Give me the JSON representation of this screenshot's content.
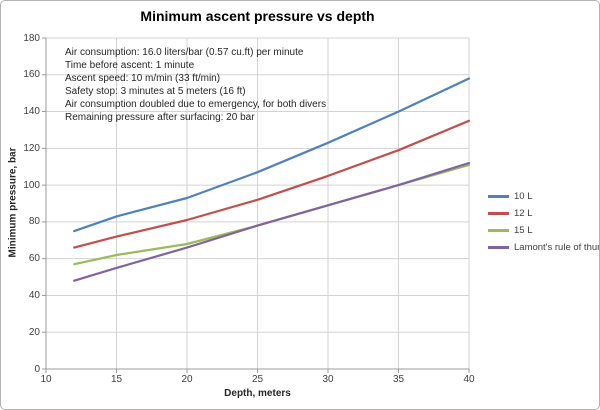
{
  "chart_data": {
    "type": "line",
    "title": "Minimum ascent pressure vs depth",
    "xlabel": "Depth, meters",
    "ylabel": "Minimum pressure, bar",
    "xlim": [
      10,
      40
    ],
    "ylim": [
      0,
      180
    ],
    "x_ticks": [
      10,
      15,
      20,
      25,
      30,
      35,
      40
    ],
    "y_ticks": [
      0,
      20,
      40,
      60,
      80,
      100,
      120,
      140,
      160,
      180
    ],
    "grid": true,
    "legend_position": "right",
    "x": [
      12,
      15,
      20,
      25,
      30,
      35,
      40
    ],
    "series": [
      {
        "name": "10 L",
        "color": "#4F81BD",
        "values": [
          75,
          83,
          93,
          107,
          123,
          140,
          158
        ]
      },
      {
        "name": "12 L",
        "color": "#C0504D",
        "values": [
          66,
          72,
          81,
          92,
          105,
          119,
          135
        ]
      },
      {
        "name": "15 L",
        "color": "#9BBB59",
        "values": [
          57,
          62,
          68,
          78,
          89,
          100,
          111
        ]
      },
      {
        "name": "Lamont's rule of thumb",
        "color": "#8064A2",
        "values": [
          48,
          55,
          66,
          78,
          89,
          100,
          112
        ]
      }
    ],
    "annotations": [
      "Air consumption: 16.0 liters/bar (0.57 cu.ft) per minute",
      "Time before ascent: 1 minute",
      "Ascent speed: 10 m/min (33 ft/min)",
      "Safety stop: 3 minutes at 5 meters (16 ft)",
      "Air consumption doubled due to emergency, for both divers",
      "Remaining pressure after surfacing: 20 bar"
    ],
    "colors": {
      "gridline": "#D3D3D3",
      "axis": "#9B9B9B",
      "tick_label": "#3f3f3f",
      "background": "#FFFFFF"
    }
  }
}
